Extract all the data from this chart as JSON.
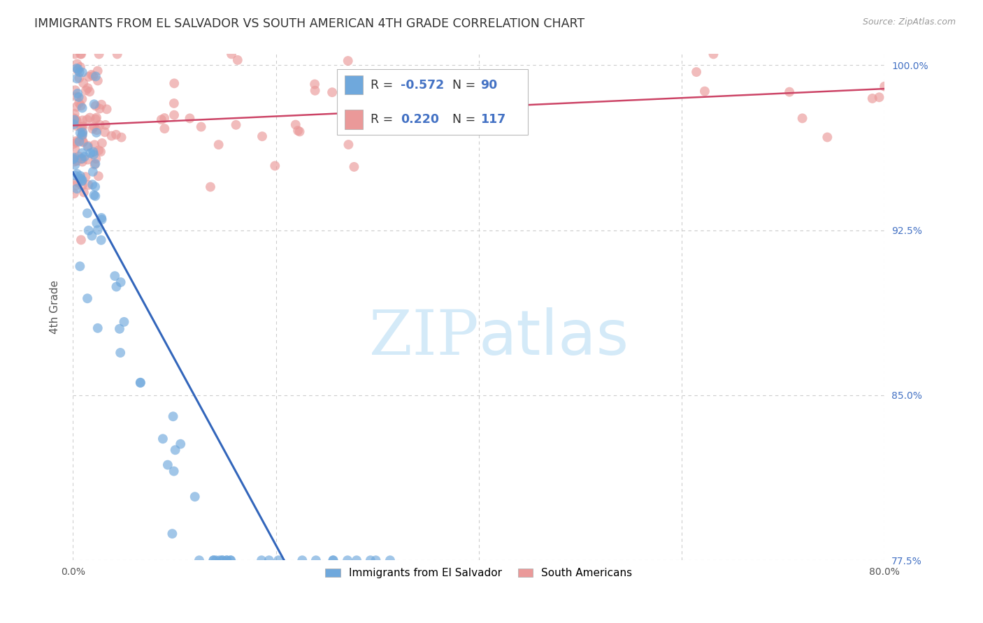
{
  "title": "IMMIGRANTS FROM EL SALVADOR VS SOUTH AMERICAN 4TH GRADE CORRELATION CHART",
  "source": "Source: ZipAtlas.com",
  "ylabel": "4th Grade",
  "xlim": [
    0.0,
    0.8
  ],
  "ylim": [
    0.775,
    1.005
  ],
  "ytick_labels_right": [
    "100.0%",
    "92.5%",
    "85.0%",
    "77.5%"
  ],
  "ytick_vals_right": [
    1.0,
    0.925,
    0.85,
    0.775
  ],
  "blue_R": -0.572,
  "blue_N": 90,
  "pink_R": 0.22,
  "pink_N": 117,
  "blue_color": "#6fa8dc",
  "pink_color": "#ea9999",
  "blue_line_color": "#3366bb",
  "pink_line_color": "#cc4466",
  "dashed_line_color": "#aaccee",
  "background_color": "#ffffff",
  "grid_color": "#cccccc",
  "seed": 12345
}
